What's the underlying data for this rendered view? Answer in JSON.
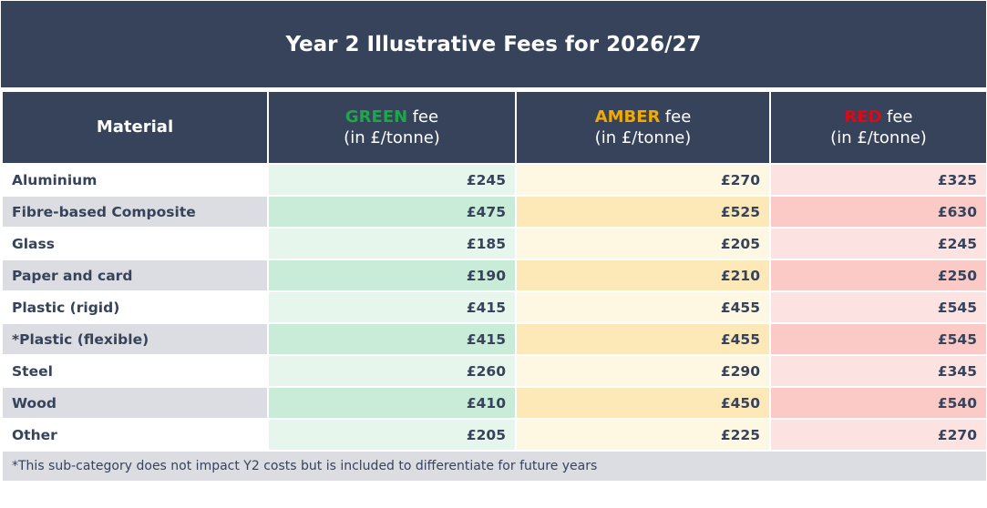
{
  "header": {
    "title": "Year 2 Illustrative Fees for 2026/27"
  },
  "table": {
    "columns": [
      {
        "label": "Material"
      },
      {
        "highlight": "GREEN",
        "highlight_color": "#1fa64a",
        "label": "fee",
        "unit": "(in £/tonne)"
      },
      {
        "highlight": "AMBER",
        "highlight_color": "#f2a900",
        "label": "fee",
        "unit": "(in £/tonne)"
      },
      {
        "highlight": "RED",
        "highlight_color": "#e30613",
        "label": "fee",
        "unit": "(in £/tonne)"
      }
    ],
    "rows": [
      [
        "Aluminium",
        "£245",
        "£270",
        "£325"
      ],
      [
        "Fibre-based Composite",
        "£475",
        "£525",
        "£630"
      ],
      [
        "Glass",
        "£185",
        "£205",
        "£245"
      ],
      [
        "Paper and card",
        "£190",
        "£210",
        "£250"
      ],
      [
        "Plastic (rigid)",
        "£415",
        "£455",
        "£545"
      ],
      [
        "*Plastic (flexible)",
        "£415",
        "£455",
        "£545"
      ],
      [
        "Steel",
        "£260",
        "£290",
        "£345"
      ],
      [
        "Wood",
        "£410",
        "£450",
        "£540"
      ],
      [
        "Other",
        "£205",
        "£225",
        "£270"
      ]
    ],
    "footnote": "*This sub-category does not impact Y2 costs but is included to differentiate for future years"
  }
}
